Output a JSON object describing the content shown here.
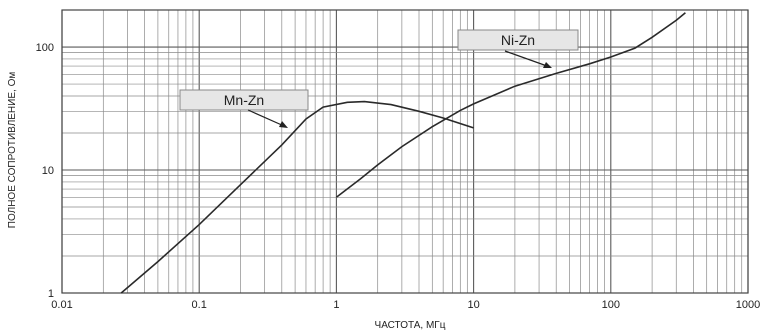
{
  "chart_data": {
    "type": "line",
    "title": "",
    "xlabel": "ЧАСТОТА, МГц",
    "ylabel": "ПОЛНОЕ СОПРОТИВЛЕНИЕ, Ом",
    "x_scale": "log",
    "y_scale": "log",
    "xlim": [
      0.01,
      1000
    ],
    "ylim": [
      1,
      200
    ],
    "grid": true,
    "x_ticks": [
      "0.01",
      "0.1",
      "1",
      "10",
      "100",
      "1000"
    ],
    "y_ticks": [
      "1",
      "10",
      "100"
    ],
    "series": [
      {
        "name": "Mn-Zn",
        "x": [
          0.027,
          0.05,
          0.1,
          0.2,
          0.4,
          0.6,
          0.8,
          1.2,
          1.6,
          2.5,
          4,
          6,
          10
        ],
        "y": [
          1.0,
          1.8,
          3.6,
          7.6,
          16.0,
          26.0,
          32.5,
          35.5,
          36.0,
          34.0,
          30.0,
          26.5,
          22.0
        ]
      },
      {
        "name": "Ni-Zn",
        "x": [
          1,
          1.5,
          2,
          3,
          5,
          8,
          10,
          20,
          40,
          70,
          100,
          150,
          200,
          300,
          350
        ],
        "y": [
          6.0,
          8.5,
          11.0,
          15.5,
          22.5,
          30.5,
          34.5,
          48.0,
          61.0,
          73.0,
          83.0,
          98.0,
          120.0,
          165.0,
          190.0
        ]
      }
    ],
    "annotations": [
      {
        "text": "Mn-Zn",
        "target_series": "Mn-Zn"
      },
      {
        "text": "Ni-Zn",
        "target_series": "Ni-Zn"
      }
    ]
  }
}
